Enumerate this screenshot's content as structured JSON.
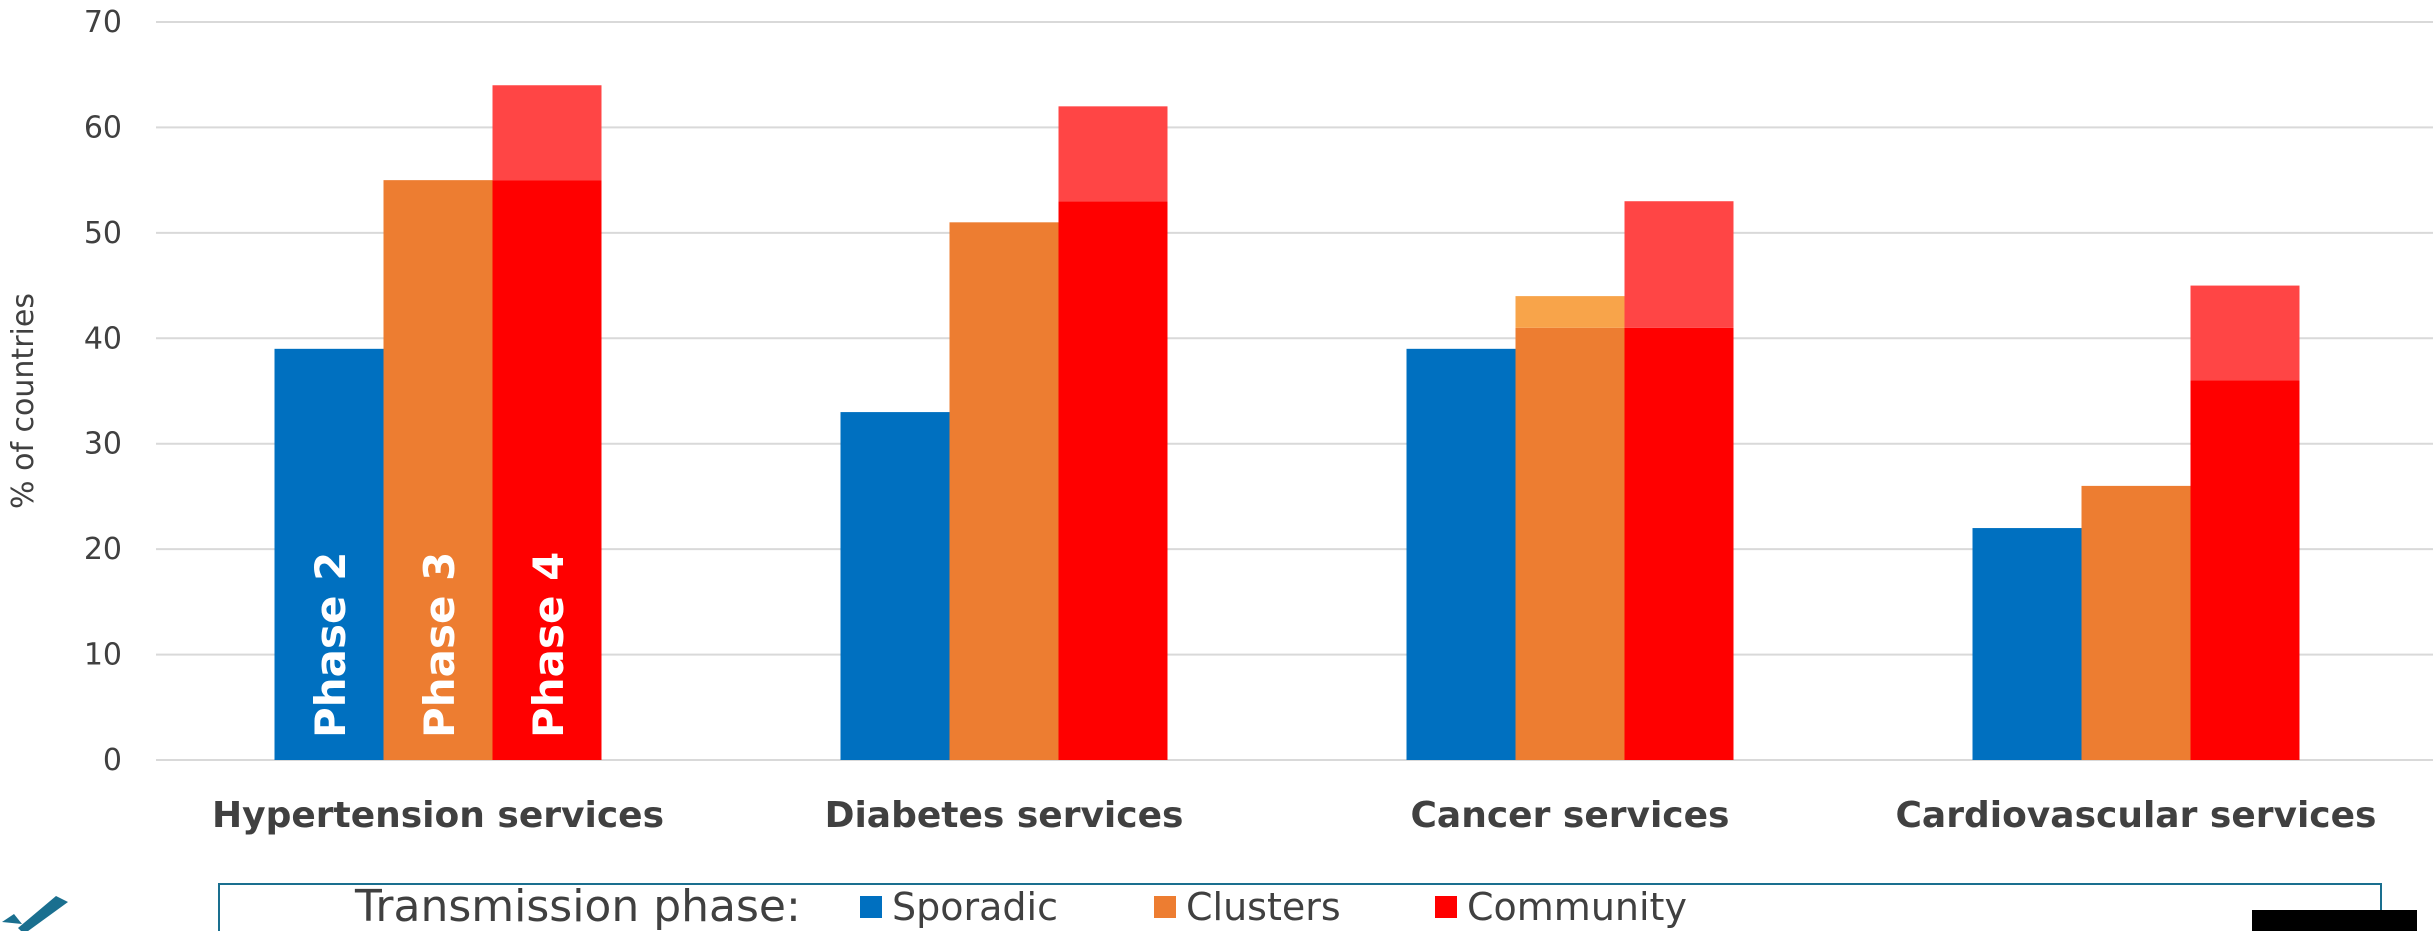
{
  "chart_data": {
    "type": "bar",
    "title": "",
    "xlabel": "",
    "ylabel": "% of countries",
    "ylim": [
      0,
      70
    ],
    "yticks": [
      0,
      10,
      20,
      30,
      40,
      50,
      60,
      70
    ],
    "grid": true,
    "legend_position": "bottom",
    "categories": [
      "Hypertension services",
      "Diabetes services",
      "Cancer services",
      "Cardiovascular services"
    ],
    "series": [
      {
        "name": "Sporadic",
        "color": "#0070C0",
        "values": [
          39,
          33,
          39,
          22
        ],
        "extra": [
          0,
          0,
          0,
          0
        ],
        "extra_color": "#0070C0",
        "phase_label": "Phase 2"
      },
      {
        "name": "Clusters",
        "color": "#ED7D31",
        "values": [
          55,
          51,
          41,
          26
        ],
        "extra": [
          0,
          0,
          3,
          0
        ],
        "extra_color": "#F8A44A",
        "phase_label": "Phase 3"
      },
      {
        "name": "Community",
        "color": "#FF0000",
        "values": [
          55,
          53,
          41,
          36
        ],
        "extra": [
          9,
          9,
          12,
          9
        ],
        "extra_color": "#FF4545",
        "phase_label": "Phase 4"
      }
    ]
  },
  "legend": {
    "title": "Transmission phase:",
    "items": [
      {
        "label": "Sporadic",
        "color": "#0070C0"
      },
      {
        "label": "Clusters",
        "color": "#ED7D31"
      },
      {
        "label": "Community",
        "color": "#FF0000"
      }
    ]
  },
  "logo": {
    "icon": "checkmark-logo-icon",
    "color": "#1a6f8f"
  }
}
